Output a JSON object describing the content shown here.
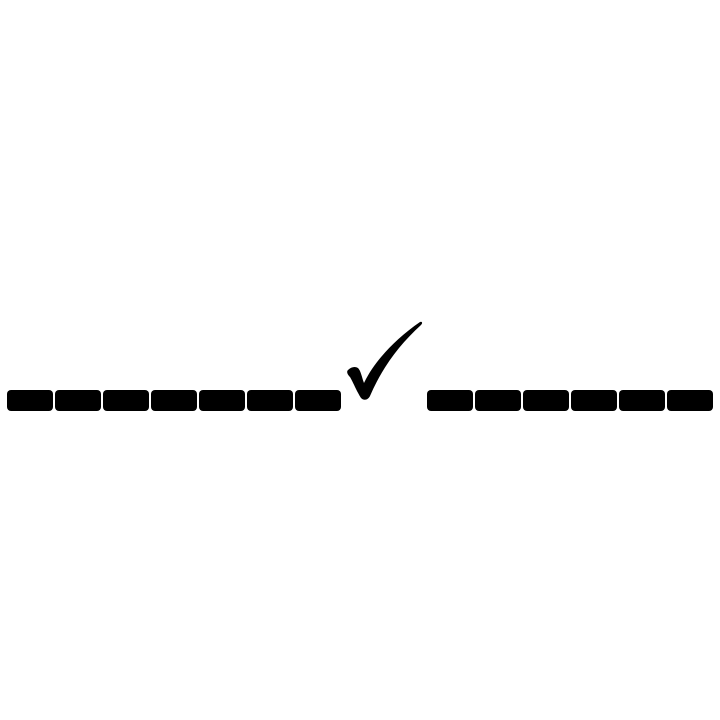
{
  "colors": {
    "background": "#ffffff",
    "segment": "#000000",
    "check": "#000000"
  },
  "marks": {
    "left_segment_count": 7,
    "right_segment_count": 6,
    "check_icon": "check-mark-icon"
  }
}
